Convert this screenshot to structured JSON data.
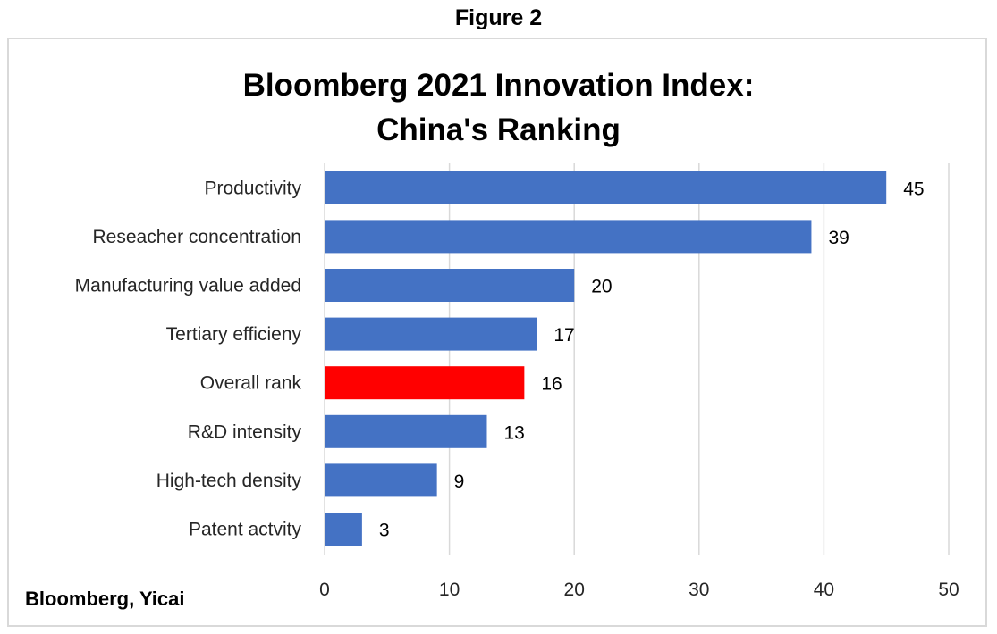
{
  "figure_label": "Figure 2",
  "source": "Bloomberg, Yicai",
  "colors": {
    "bar": "#4472c4",
    "highlight": "#ff0000",
    "grid": "#d9d9d9"
  },
  "chart_data": {
    "type": "bar",
    "orientation": "horizontal",
    "title_lines": [
      "Bloomberg 2021 Innovation Index:",
      "China's Ranking"
    ],
    "categories": [
      "Productivity",
      "Reseacher concentration",
      "Manufacturing value added",
      "Tertiary efficieny",
      "Overall rank",
      "R&D intensity",
      "High-tech density",
      "Patent actvity"
    ],
    "values": [
      45,
      39,
      20,
      17,
      16,
      13,
      9,
      3
    ],
    "highlight": "Overall rank",
    "xlim": [
      0,
      50
    ],
    "xticks": [
      0,
      10,
      20,
      30,
      40,
      50
    ],
    "grid": true,
    "data_labels": true
  }
}
